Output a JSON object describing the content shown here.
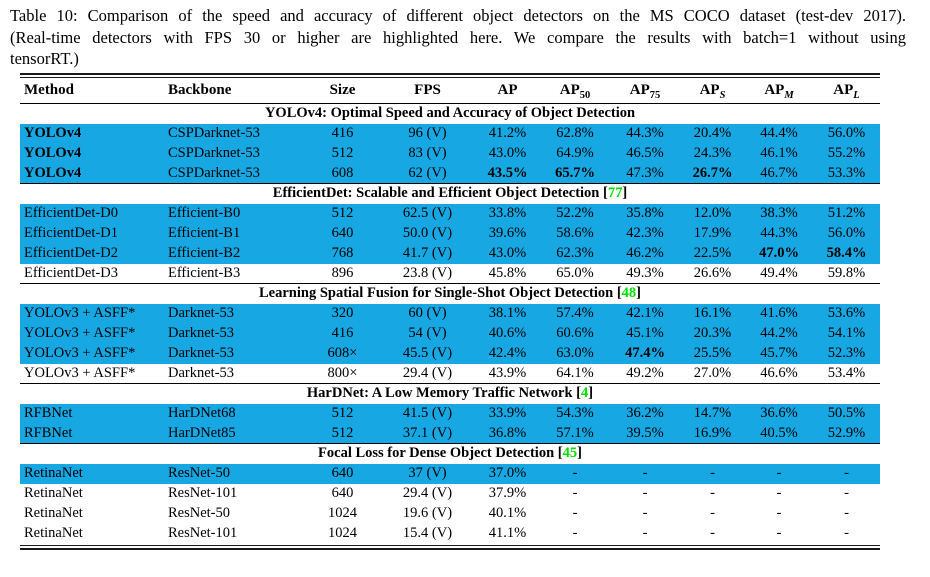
{
  "caption": {
    "lines": [
      "Table 10: Comparison of the speed and accuracy of different object detectors on the MS COCO dataset (test-dev 2017).",
      "(Real-time detectors with FPS 30 or higher are highlighted here. We compare the results with batch=1 without using",
      "tensorRT.)"
    ]
  },
  "colors": {
    "highlight": "#17A8E4",
    "citation": "#00DE00",
    "text": "#000000",
    "rule": "#1a1a1a"
  },
  "table": {
    "columns": [
      {
        "label": "Method",
        "align": "left"
      },
      {
        "label": "Backbone",
        "align": "left"
      },
      {
        "label": "Size",
        "align": "center"
      },
      {
        "label": "FPS",
        "align": "center"
      },
      {
        "label": "AP",
        "align": "center"
      },
      {
        "label": "AP",
        "sub": "50",
        "italic_sub": false,
        "align": "center"
      },
      {
        "label": "AP",
        "sub": "75",
        "italic_sub": false,
        "align": "center"
      },
      {
        "label": "AP",
        "sub": "S",
        "italic_sub": true,
        "align": "center"
      },
      {
        "label": "AP",
        "sub": "M",
        "italic_sub": true,
        "align": "center"
      },
      {
        "label": "AP",
        "sub": "L",
        "italic_sub": true,
        "align": "center"
      }
    ],
    "sections": [
      {
        "title": "YOLOv4: Optimal Speed and Accuracy of Object Detection",
        "citation": null,
        "rows": [
          {
            "cells": [
              "YOLOv4",
              "CSPDarknet-53",
              "416",
              "96 (V)",
              "41.2%",
              "62.8%",
              "44.3%",
              "20.4%",
              "44.4%",
              "56.0%"
            ],
            "highlight": true,
            "method_bold": true,
            "bold": []
          },
          {
            "cells": [
              "YOLOv4",
              "CSPDarknet-53",
              "512",
              "83 (V)",
              "43.0%",
              "64.9%",
              "46.5%",
              "24.3%",
              "46.1%",
              "55.2%"
            ],
            "highlight": true,
            "method_bold": true,
            "bold": []
          },
          {
            "cells": [
              "YOLOv4",
              "CSPDarknet-53",
              "608",
              "62 (V)",
              "43.5%",
              "65.7%",
              "47.3%",
              "26.7%",
              "46.7%",
              "53.3%"
            ],
            "highlight": true,
            "method_bold": true,
            "bold": [
              4,
              5,
              7
            ]
          }
        ]
      },
      {
        "title": "EfficientDet: Scalable and Efficient Object Detection",
        "citation": "77",
        "rows": [
          {
            "cells": [
              "EfficientDet-D0",
              "Efficient-B0",
              "512",
              "62.5 (V)",
              "33.8%",
              "52.2%",
              "35.8%",
              "12.0%",
              "38.3%",
              "51.2%"
            ],
            "highlight": true,
            "method_bold": false,
            "bold": []
          },
          {
            "cells": [
              "EfficientDet-D1",
              "Efficient-B1",
              "640",
              "50.0 (V)",
              "39.6%",
              "58.6%",
              "42.3%",
              "17.9%",
              "44.3%",
              "56.0%"
            ],
            "highlight": true,
            "method_bold": false,
            "bold": []
          },
          {
            "cells": [
              "EfficientDet-D2",
              "Efficient-B2",
              "768",
              "41.7 (V)",
              "43.0%",
              "62.3%",
              "46.2%",
              "22.5%",
              "47.0%",
              "58.4%"
            ],
            "highlight": true,
            "method_bold": false,
            "bold": [
              8,
              9
            ]
          },
          {
            "cells": [
              "EfficientDet-D3",
              "Efficient-B3",
              "896",
              "23.8 (V)",
              "45.8%",
              "65.0%",
              "49.3%",
              "26.6%",
              "49.4%",
              "59.8%"
            ],
            "highlight": false,
            "method_bold": false,
            "bold": []
          }
        ]
      },
      {
        "title": "Learning Spatial Fusion for Single-Shot Object Detection",
        "citation": "48",
        "rows": [
          {
            "cells": [
              "YOLOv3 + ASFF*",
              "Darknet-53",
              "320",
              "60 (V)",
              "38.1%",
              "57.4%",
              "42.1%",
              "16.1%",
              "41.6%",
              "53.6%"
            ],
            "highlight": true,
            "method_bold": false,
            "bold": []
          },
          {
            "cells": [
              "YOLOv3 + ASFF*",
              "Darknet-53",
              "416",
              "54 (V)",
              "40.6%",
              "60.6%",
              "45.1%",
              "20.3%",
              "44.2%",
              "54.1%"
            ],
            "highlight": true,
            "method_bold": false,
            "bold": []
          },
          {
            "cells": [
              "YOLOv3 + ASFF*",
              "Darknet-53",
              "608×",
              "45.5 (V)",
              "42.4%",
              "63.0%",
              "47.4%",
              "25.5%",
              "45.7%",
              "52.3%"
            ],
            "highlight": true,
            "method_bold": false,
            "bold": [
              6
            ]
          },
          {
            "cells": [
              "YOLOv3 + ASFF*",
              "Darknet-53",
              "800×",
              "29.4 (V)",
              "43.9%",
              "64.1%",
              "49.2%",
              "27.0%",
              "46.6%",
              "53.4%"
            ],
            "highlight": false,
            "method_bold": false,
            "bold": []
          }
        ]
      },
      {
        "title": "HarDNet: A Low Memory Traffic Network",
        "citation": "4",
        "rows": [
          {
            "cells": [
              "RFBNet",
              "HarDNet68",
              "512",
              "41.5 (V)",
              "33.9%",
              "54.3%",
              "36.2%",
              "14.7%",
              "36.6%",
              "50.5%"
            ],
            "highlight": true,
            "method_bold": false,
            "bold": []
          },
          {
            "cells": [
              "RFBNet",
              "HarDNet85",
              "512",
              "37.1 (V)",
              "36.8%",
              "57.1%",
              "39.5%",
              "16.9%",
              "40.5%",
              "52.9%"
            ],
            "highlight": true,
            "method_bold": false,
            "bold": []
          }
        ]
      },
      {
        "title": "Focal Loss for Dense Object Detection",
        "citation": "45",
        "rows": [
          {
            "cells": [
              "RetinaNet",
              "ResNet-50",
              "640",
              "37 (V)",
              "37.0%",
              "-",
              "-",
              "-",
              "-",
              "-"
            ],
            "highlight": true,
            "method_bold": false,
            "bold": []
          },
          {
            "cells": [
              "RetinaNet",
              "ResNet-101",
              "640",
              "29.4 (V)",
              "37.9%",
              "-",
              "-",
              "-",
              "-",
              "-"
            ],
            "highlight": false,
            "method_bold": false,
            "bold": []
          },
          {
            "cells": [
              "RetinaNet",
              "ResNet-50",
              "1024",
              "19.6 (V)",
              "40.1%",
              "-",
              "-",
              "-",
              "-",
              "-"
            ],
            "highlight": false,
            "method_bold": false,
            "bold": []
          },
          {
            "cells": [
              "RetinaNet",
              "ResNet-101",
              "1024",
              "15.4 (V)",
              "41.1%",
              "-",
              "-",
              "-",
              "-",
              "-"
            ],
            "highlight": false,
            "method_bold": false,
            "bold": []
          }
        ]
      }
    ]
  }
}
